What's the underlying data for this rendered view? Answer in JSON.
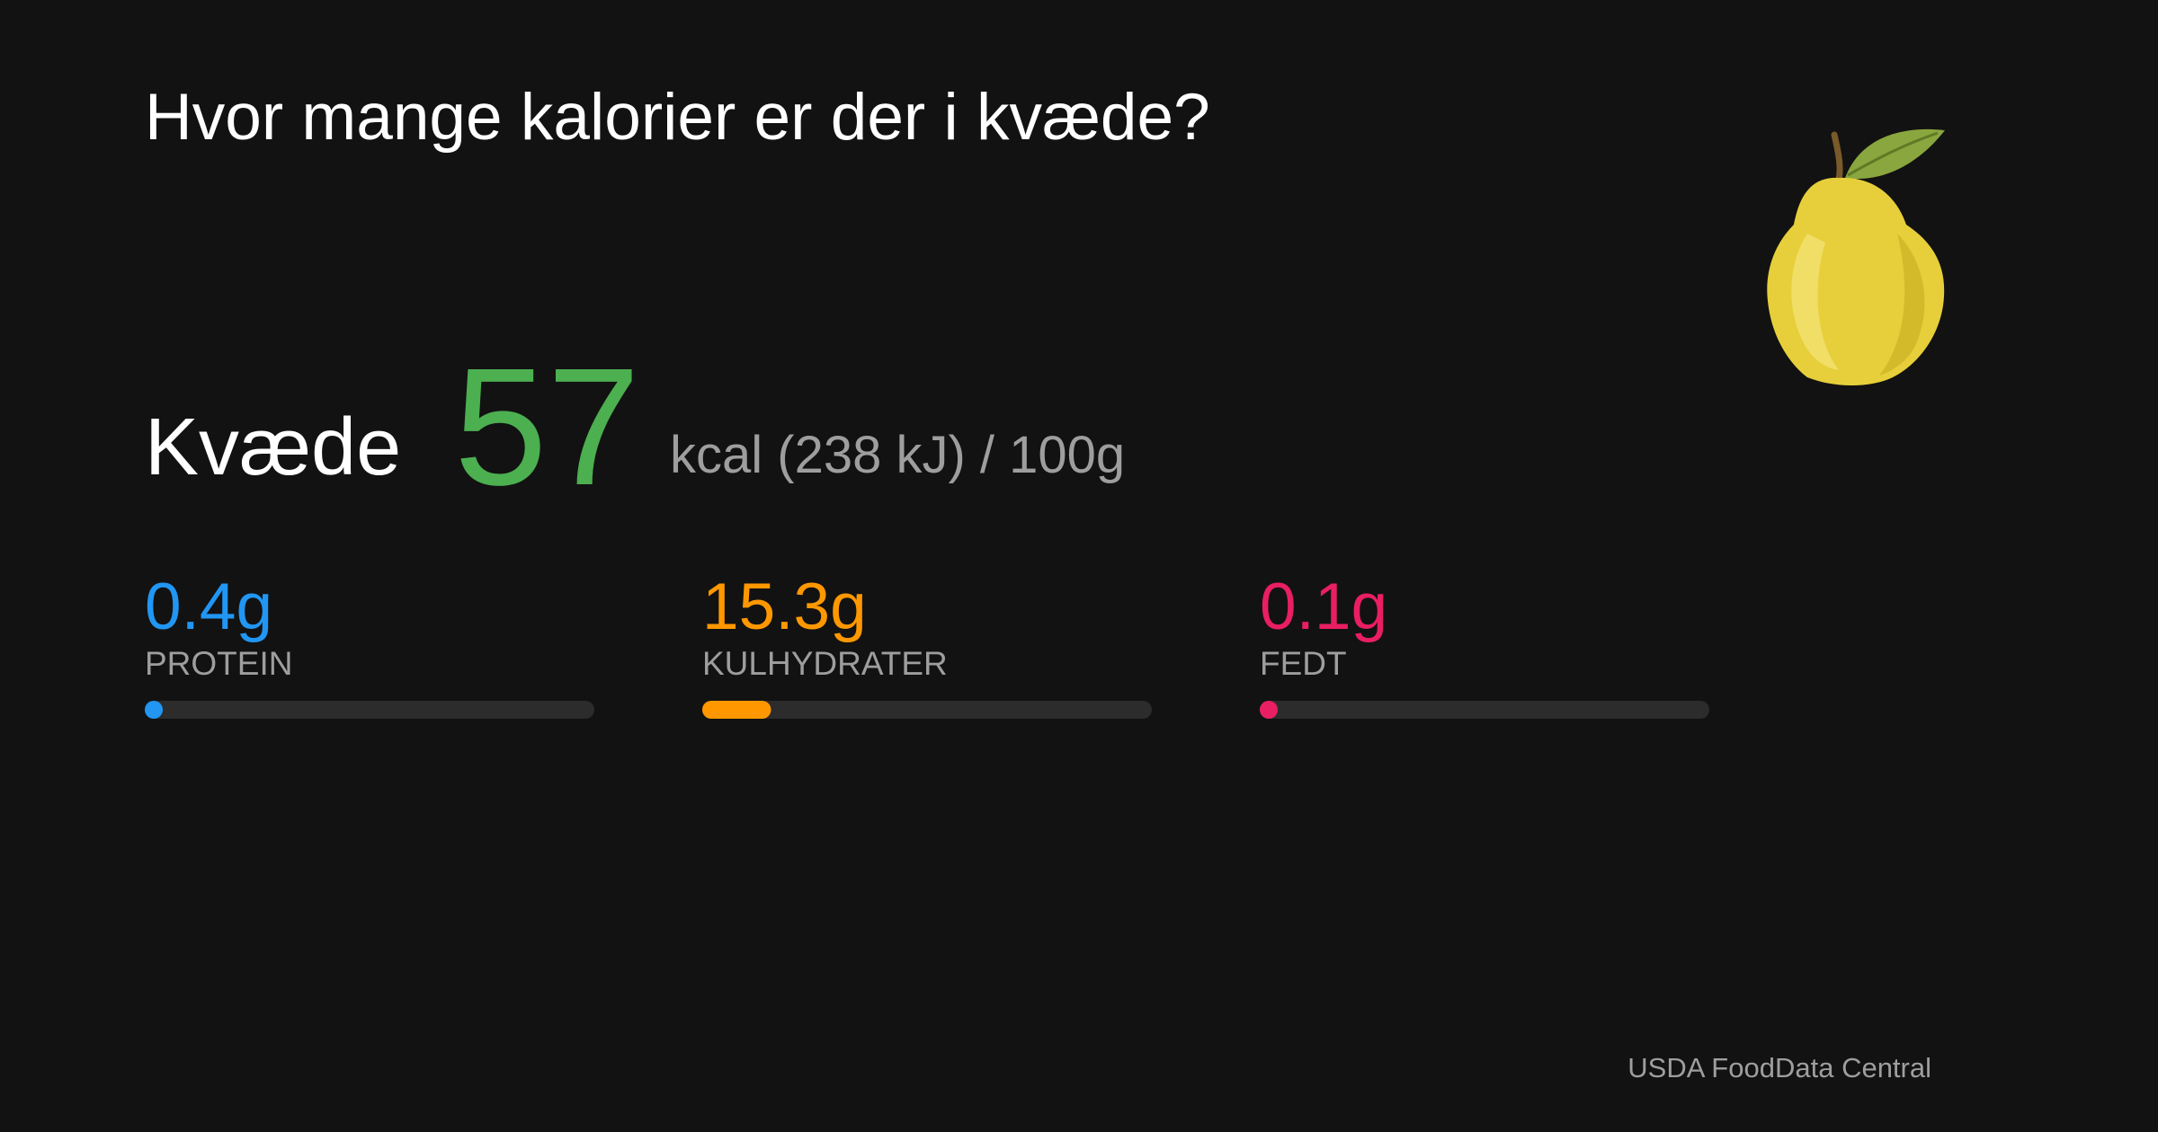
{
  "header": {
    "title": "Hvor mange kalorier er der i kvæde?"
  },
  "food": {
    "name": "Kvæde",
    "calories": 57,
    "unit": "kcal (238 kJ) / 100g"
  },
  "macros": [
    {
      "value": 0.4,
      "label": "0.4g",
      "name": "PROTEIN",
      "color": "#2196f3"
    },
    {
      "value": 15.3,
      "label": "15.3g",
      "name": "KULHYDRATER",
      "color": "#ff9800"
    },
    {
      "value": 0.1,
      "label": "0.1g",
      "name": "FEDT",
      "color": "#e91e63"
    }
  ],
  "footer": {
    "source": "USDA FoodData Central"
  }
}
